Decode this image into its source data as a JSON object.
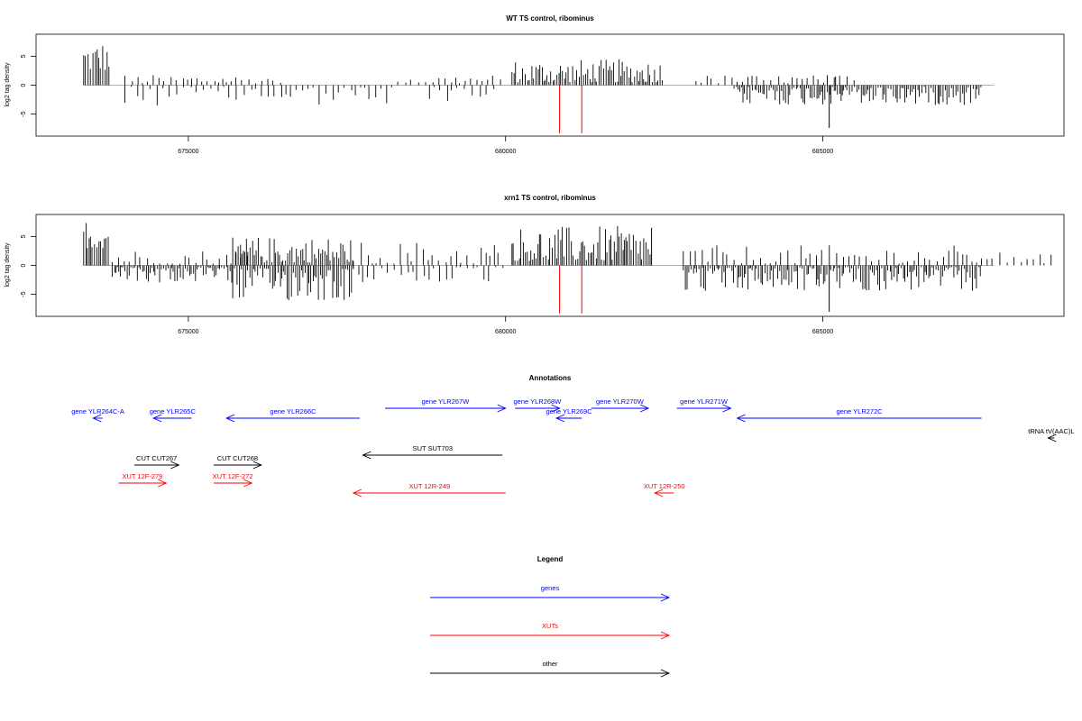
{
  "chart_data": [
    {
      "type": "bar",
      "title": "WT TS control, ribominus",
      "xlabel": "",
      "ylabel": "log2 tag density",
      "xlim": [
        672600,
        688800
      ],
      "ylim": [
        -8.8,
        8.8
      ],
      "x_ticks": [
        675000,
        680000,
        685000
      ],
      "x_tick_labels": [
        "675000",
        "680000",
        "685000"
      ],
      "y_ticks": [
        -5,
        0,
        5
      ],
      "y_tick_labels": [
        "-5",
        "0",
        "5"
      ],
      "grid": false,
      "colors": {
        "bars": "#000000",
        "highlight": "#ff0000",
        "baseline": "#999999"
      },
      "highlight_positions": [
        680850,
        681200
      ],
      "highlight_values": [
        -8.3,
        -8.3
      ],
      "blocks": [
        {
          "range": [
            673350,
            673750
          ],
          "sign": "+",
          "min": 2.5,
          "max": 7.8,
          "density": "dense"
        },
        {
          "range": [
            674000,
            676500
          ],
          "sign": "+",
          "min": 0.3,
          "max": 1.8,
          "density": "sparse"
        },
        {
          "range": [
            674000,
            678300
          ],
          "sign": "-",
          "min": 0.3,
          "max": 3.5,
          "density": "sparse"
        },
        {
          "range": [
            678300,
            680000
          ],
          "sign": "+",
          "min": 0.3,
          "max": 1.8,
          "density": "sparse"
        },
        {
          "range": [
            678800,
            679900
          ],
          "sign": "-",
          "min": 0.3,
          "max": 2.8,
          "density": "sparse"
        },
        {
          "range": [
            680100,
            682500
          ],
          "sign": "+",
          "min": 0.5,
          "max": 4.5,
          "density": "dense"
        },
        {
          "range": [
            683600,
            687500
          ],
          "sign": "-",
          "min": 0.3,
          "max": 3.5,
          "density": "dense"
        },
        {
          "range": [
            683000,
            685500
          ],
          "sign": "+",
          "min": 0.3,
          "max": 1.8,
          "density": "sparse"
        }
      ],
      "spikes": [
        [
          685100,
          -7.4
        ],
        [
          685200,
          1.5
        ]
      ]
    },
    {
      "type": "bar",
      "title": "xrn1 TS control, ribominus",
      "xlabel": "",
      "ylabel": "log2 tag density",
      "xlim": [
        672600,
        688800
      ],
      "ylim": [
        -8.8,
        8.8
      ],
      "x_ticks": [
        675000,
        680000,
        685000
      ],
      "x_tick_labels": [
        "675000",
        "680000",
        "685000"
      ],
      "y_ticks": [
        -5,
        0,
        5
      ],
      "y_tick_labels": [
        "-5",
        "0",
        "5"
      ],
      "grid": false,
      "colors": {
        "bars": "#000000",
        "highlight": "#ff0000",
        "baseline": "#999999"
      },
      "highlight_positions": [
        680850,
        681200
      ],
      "highlight_values": [
        -8.3,
        -8.3
      ],
      "blocks": [
        {
          "range": [
            673350,
            673750
          ],
          "sign": "+",
          "min": 3.0,
          "max": 8.2,
          "density": "dense"
        },
        {
          "range": [
            673800,
            676000
          ],
          "sign": "+",
          "min": 0.3,
          "max": 2.8,
          "density": "sparse"
        },
        {
          "range": [
            673800,
            675700
          ],
          "sign": "-",
          "min": 0.3,
          "max": 3.0,
          "density": "dense"
        },
        {
          "range": [
            675700,
            677600
          ],
          "sign": "+",
          "min": 0.5,
          "max": 5.0,
          "density": "dense"
        },
        {
          "range": [
            675700,
            677600
          ],
          "sign": "-",
          "min": 0.5,
          "max": 6.3,
          "density": "dense"
        },
        {
          "range": [
            677600,
            680000
          ],
          "sign": "+",
          "min": 0.3,
          "max": 4.2,
          "density": "sparse"
        },
        {
          "range": [
            677600,
            680000
          ],
          "sign": "-",
          "min": 0.3,
          "max": 3.2,
          "density": "sparse"
        },
        {
          "range": [
            680100,
            682300
          ],
          "sign": "+",
          "min": 0.8,
          "max": 6.8,
          "density": "dense"
        },
        {
          "range": [
            682800,
            687500
          ],
          "sign": "+",
          "min": 0.3,
          "max": 3.5,
          "density": "sparse"
        },
        {
          "range": [
            682800,
            687500
          ],
          "sign": "-",
          "min": 0.3,
          "max": 4.5,
          "density": "dense"
        },
        {
          "range": [
            687500,
            688600
          ],
          "sign": "+",
          "min": 0.3,
          "max": 2.5,
          "density": "sparse"
        }
      ],
      "spikes": [
        [
          685100,
          -8.0
        ],
        [
          682300,
          6.5
        ]
      ]
    }
  ],
  "annotations": {
    "title": "Annotations",
    "items": [
      {
        "label": "gene YLR264C-A",
        "color": "#0000ff",
        "start": 673650,
        "end": 673500,
        "row": 1
      },
      {
        "label": "gene YLR265C",
        "color": "#0000ff",
        "start": 675050,
        "end": 674450,
        "row": 1
      },
      {
        "label": "gene YLR266C",
        "color": "#0000ff",
        "start": 677700,
        "end": 675600,
        "row": 1
      },
      {
        "label": "gene YLR267W",
        "color": "#0000ff",
        "start": 678100,
        "end": 680000,
        "row": 0
      },
      {
        "label": "gene YLR268W",
        "color": "#0000ff",
        "start": 680150,
        "end": 680850,
        "row": 0
      },
      {
        "label": "gene YLR269C",
        "color": "#0000ff",
        "start": 681200,
        "end": 680800,
        "row": 1
      },
      {
        "label": "gene YLR270W",
        "color": "#0000ff",
        "start": 681350,
        "end": 682250,
        "row": 0
      },
      {
        "label": "gene YLR271W",
        "color": "#0000ff",
        "start": 682700,
        "end": 683550,
        "row": 0
      },
      {
        "label": "gene YLR272C",
        "color": "#0000ff",
        "start": 687500,
        "end": 683650,
        "row": 1
      },
      {
        "label": "tRNA tV(AAC)L",
        "color": "#000000",
        "start": 688650,
        "end": 688550,
        "row": 2
      },
      {
        "label": "SUT SUT703",
        "color": "#000000",
        "start": 679950,
        "end": 677750,
        "row": 3
      },
      {
        "label": "CUT CUT267",
        "color": "#000000",
        "start": 674150,
        "end": 674850,
        "row": 4
      },
      {
        "label": "CUT CUT268",
        "color": "#000000",
        "start": 675400,
        "end": 676150,
        "row": 4
      },
      {
        "label": "XUT 12F-279",
        "color": "#ff0000",
        "start": 673900,
        "end": 674650,
        "row": 5
      },
      {
        "label": "XUT 12F-272",
        "color": "#ff0000",
        "start": 675400,
        "end": 676000,
        "row": 5
      },
      {
        "label": "XUT 12R-249",
        "color": "#ff0000",
        "start": 680000,
        "end": 677600,
        "row": 6
      },
      {
        "label": "XUT 12R-250",
        "color": "#ff0000",
        "start": 682650,
        "end": 682350,
        "row": 6
      }
    ]
  },
  "legend": {
    "title": "Legend",
    "items": [
      {
        "label": "genes",
        "color": "#0000ff"
      },
      {
        "label": "XUTs",
        "color": "#ff0000"
      },
      {
        "label": "other",
        "color": "#000000"
      }
    ]
  }
}
